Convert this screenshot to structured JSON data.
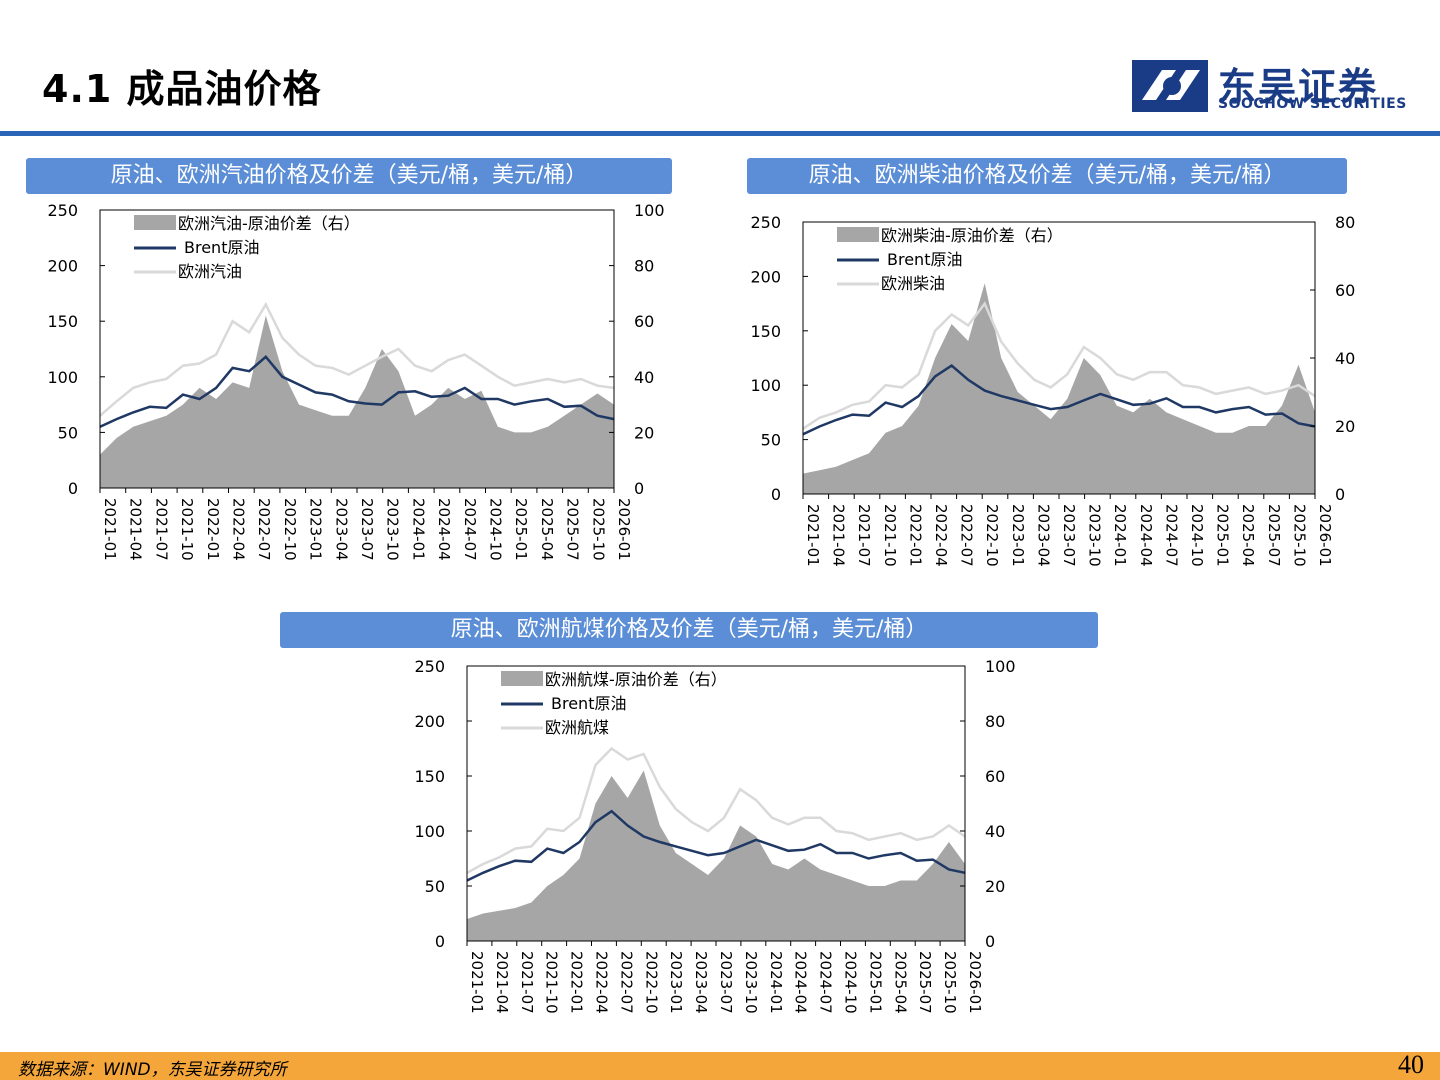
{
  "header": {
    "title": "4.1 成品油价格",
    "logo_cn": "东吴证券",
    "logo_en": "SOOCHOW SECURITIES"
  },
  "footer": {
    "source": "数据来源：WIND，东吴证券研究所",
    "page_number": "40"
  },
  "colors": {
    "accent": "#5b8ed6",
    "rule": "#2a64b8",
    "footer": "#f5a63b",
    "brent": "#1f3864",
    "product": "#d9d9d9",
    "spread": "#a6a6a6"
  },
  "chart_data": [
    {
      "type": "line",
      "title": "原油、欧洲汽油价格及价差（美元/桶，美元/桶）",
      "x_ticks": [
        "2021-01",
        "2021-04",
        "2021-07",
        "2021-10",
        "2022-01",
        "2022-04",
        "2022-07",
        "2022-10",
        "2023-01",
        "2023-04",
        "2023-07",
        "2023-10",
        "2024-01",
        "2024-04",
        "2024-07",
        "2024-10",
        "2025-01",
        "2025-04",
        "2025-07",
        "2025-10",
        "2026-01"
      ],
      "y_left_ticks": [
        "0",
        "50",
        "100",
        "150",
        "200",
        "250"
      ],
      "y_right_ticks": [
        "0",
        "20",
        "40",
        "60",
        "80",
        "100"
      ],
      "ylim_left": [
        0,
        250
      ],
      "ylim_right": [
        0,
        100
      ],
      "legend": {
        "spread": "欧洲汽油-原油价差（右）",
        "brent": "Brent原油",
        "product": "欧洲汽油"
      },
      "series": [
        {
          "name": "Brent原油",
          "axis": "left",
          "values": [
            55,
            62,
            68,
            73,
            72,
            84,
            80,
            90,
            108,
            105,
            118,
            100,
            93,
            86,
            84,
            78,
            76,
            75,
            86,
            87,
            82,
            83,
            90,
            80,
            80,
            75,
            78,
            80,
            73,
            74,
            65,
            62
          ]
        },
        {
          "name": "欧洲汽油",
          "axis": "left",
          "values": [
            65,
            78,
            90,
            95,
            98,
            110,
            112,
            120,
            150,
            140,
            165,
            135,
            120,
            110,
            108,
            102,
            110,
            118,
            125,
            110,
            105,
            115,
            120,
            110,
            100,
            92,
            95,
            98,
            95,
            98,
            92,
            90
          ]
        },
        {
          "name": "欧洲汽油-原油价差（右）",
          "axis": "right",
          "values": [
            12,
            18,
            22,
            24,
            26,
            30,
            36,
            32,
            38,
            36,
            62,
            42,
            30,
            28,
            26,
            26,
            36,
            50,
            42,
            26,
            30,
            36,
            32,
            35,
            22,
            20,
            20,
            22,
            26,
            30,
            34,
            30
          ]
        }
      ]
    },
    {
      "type": "line",
      "title": "原油、欧洲柴油价格及价差（美元/桶，美元/桶）",
      "x_ticks": [
        "2021-01",
        "2021-04",
        "2021-07",
        "2021-10",
        "2022-01",
        "2022-04",
        "2022-07",
        "2022-10",
        "2023-01",
        "2023-04",
        "2023-07",
        "2023-10",
        "2024-01",
        "2024-04",
        "2024-07",
        "2024-10",
        "2025-01",
        "2025-04",
        "2025-07",
        "2025-10",
        "2026-01"
      ],
      "y_left_ticks": [
        "0",
        "50",
        "100",
        "150",
        "200",
        "250"
      ],
      "y_right_ticks": [
        "0",
        "20",
        "40",
        "60",
        "80"
      ],
      "ylim_left": [
        0,
        250
      ],
      "ylim_right": [
        0,
        80
      ],
      "legend": {
        "spread": "欧洲柴油-原油价差（右）",
        "brent": "Brent原油",
        "product": "欧洲柴油"
      },
      "series": [
        {
          "name": "Brent原油",
          "axis": "left",
          "values": [
            55,
            62,
            68,
            73,
            72,
            84,
            80,
            90,
            108,
            118,
            105,
            95,
            90,
            86,
            82,
            78,
            80,
            86,
            92,
            87,
            82,
            83,
            88,
            80,
            80,
            75,
            78,
            80,
            73,
            74,
            65,
            62
          ]
        },
        {
          "name": "欧洲柴油",
          "axis": "left",
          "values": [
            60,
            70,
            75,
            82,
            85,
            100,
            98,
            110,
            150,
            165,
            155,
            175,
            140,
            120,
            105,
            98,
            110,
            135,
            125,
            110,
            105,
            112,
            112,
            100,
            98,
            92,
            95,
            98,
            92,
            95,
            100,
            90
          ]
        },
        {
          "name": "欧洲柴油-原油价差（右）",
          "axis": "right",
          "values": [
            6,
            7,
            8,
            10,
            12,
            18,
            20,
            26,
            40,
            50,
            45,
            62,
            40,
            30,
            26,
            22,
            28,
            40,
            35,
            26,
            24,
            28,
            24,
            22,
            20,
            18,
            18,
            20,
            20,
            26,
            38,
            24
          ]
        }
      ]
    },
    {
      "type": "line",
      "title": "原油、欧洲航煤价格及价差（美元/桶，美元/桶）",
      "x_ticks": [
        "2021-01",
        "2021-04",
        "2021-07",
        "2021-10",
        "2022-01",
        "2022-04",
        "2022-07",
        "2022-10",
        "2023-01",
        "2023-04",
        "2023-07",
        "2023-10",
        "2024-01",
        "2024-04",
        "2024-07",
        "2024-10",
        "2025-01",
        "2025-04",
        "2025-07",
        "2025-10",
        "2026-01"
      ],
      "y_left_ticks": [
        "0",
        "50",
        "100",
        "150",
        "200",
        "250"
      ],
      "y_right_ticks": [
        "0",
        "20",
        "40",
        "60",
        "80",
        "100"
      ],
      "ylim_left": [
        0,
        250
      ],
      "ylim_right": [
        0,
        100
      ],
      "legend": {
        "spread": "欧洲航煤-原油价差（右）",
        "brent": "Brent原油",
        "product": "欧洲航煤"
      },
      "series": [
        {
          "name": "Brent原油",
          "axis": "left",
          "values": [
            55,
            62,
            68,
            73,
            72,
            84,
            80,
            90,
            108,
            118,
            105,
            95,
            90,
            86,
            82,
            78,
            80,
            86,
            92,
            87,
            82,
            83,
            88,
            80,
            80,
            75,
            78,
            80,
            73,
            74,
            65,
            62
          ]
        },
        {
          "name": "欧洲航煤",
          "axis": "left",
          "values": [
            62,
            70,
            76,
            84,
            86,
            102,
            100,
            112,
            160,
            175,
            165,
            170,
            140,
            120,
            108,
            100,
            112,
            138,
            128,
            112,
            106,
            112,
            112,
            100,
            98,
            92,
            95,
            98,
            92,
            95,
            105,
            95
          ]
        },
        {
          "name": "欧洲航煤-原油价差（右）",
          "axis": "right",
          "values": [
            8,
            10,
            11,
            12,
            14,
            20,
            24,
            30,
            50,
            60,
            52,
            62,
            42,
            32,
            28,
            24,
            30,
            42,
            38,
            28,
            26,
            30,
            26,
            24,
            22,
            20,
            20,
            22,
            22,
            28,
            36,
            28
          ]
        }
      ]
    }
  ]
}
